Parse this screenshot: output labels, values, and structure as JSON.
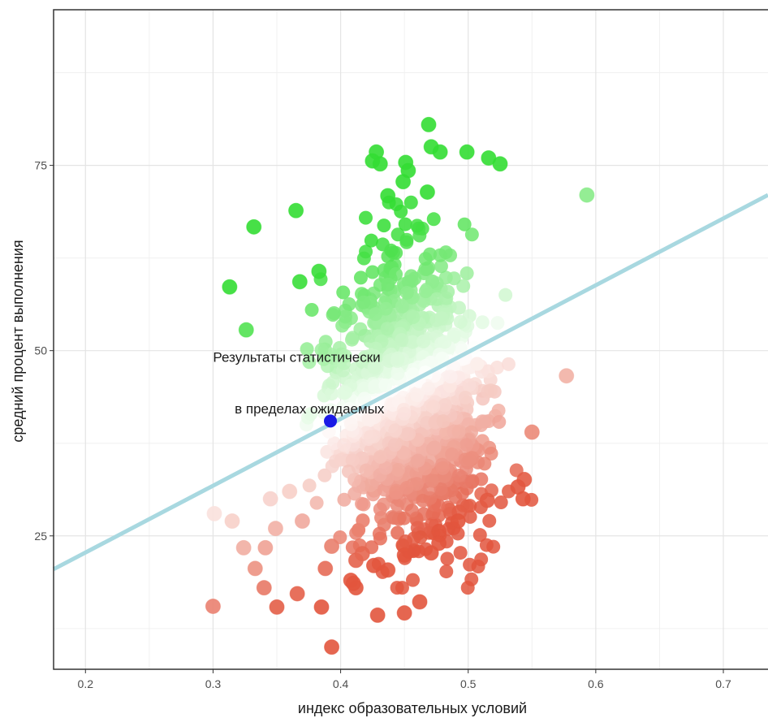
{
  "chart_data": {
    "type": "scatter",
    "title": "",
    "xlabel": "индекс образовательных условий",
    "ylabel": "средний процент выполнения",
    "xlim": [
      0.175,
      0.735
    ],
    "ylim": [
      7,
      96
    ],
    "x_ticks": [
      0.2,
      0.3,
      0.4,
      0.5,
      0.6,
      0.7
    ],
    "x_tick_labels": [
      "0.2",
      "0.3",
      "0.4",
      "0.5",
      "0.6",
      "0.7"
    ],
    "y_ticks": [
      25,
      50,
      75
    ],
    "y_tick_labels": [
      "25",
      "50",
      "75"
    ],
    "grid": true,
    "legend": "none",
    "colors": {
      "above_strong": "#33dd33",
      "below_strong": "#e2553d",
      "neutral": "#ffffff",
      "trend_line": "#a8d8e0",
      "highlight": "#1a1ae6"
    },
    "trend_line": {
      "x": [
        0.175,
        0.735
      ],
      "y": [
        20.5,
        71.0
      ]
    },
    "highlight_point": {
      "x": 0.392,
      "y": 40.5
    },
    "annotations": [
      {
        "text": "Результаты статистически",
        "x": 0.3,
        "y": 48.5
      },
      {
        "text": "в пределах ожидаемых",
        "x": 0.317,
        "y": 41.5
      }
    ],
    "notable_points": [
      [
        0.469,
        80.5
      ],
      [
        0.471,
        77.5
      ],
      [
        0.478,
        76.8
      ],
      [
        0.499,
        76.8
      ],
      [
        0.516,
        76.0
      ],
      [
        0.525,
        75.2
      ],
      [
        0.428,
        76.8
      ],
      [
        0.425,
        75.6
      ],
      [
        0.431,
        75.2
      ],
      [
        0.451,
        75.4
      ],
      [
        0.453,
        74.3
      ],
      [
        0.449,
        72.8
      ],
      [
        0.468,
        71.4
      ],
      [
        0.437,
        70.9
      ],
      [
        0.365,
        68.9
      ],
      [
        0.332,
        66.7
      ],
      [
        0.593,
        71.0
      ],
      [
        0.313,
        58.6
      ],
      [
        0.326,
        52.8
      ],
      [
        0.368,
        59.3
      ],
      [
        0.383,
        60.7
      ],
      [
        0.577,
        46.6
      ],
      [
        0.55,
        39.0
      ],
      [
        0.544,
        32.6
      ],
      [
        0.539,
        31.6
      ],
      [
        0.543,
        30.0
      ],
      [
        0.515,
        29.8
      ],
      [
        0.493,
        28.2
      ],
      [
        0.492,
        27.0
      ],
      [
        0.477,
        25.6
      ],
      [
        0.477,
        24.0
      ],
      [
        0.471,
        22.7
      ],
      [
        0.45,
        22.4
      ],
      [
        0.412,
        21.7
      ],
      [
        0.417,
        22.6
      ],
      [
        0.426,
        21.0
      ],
      [
        0.437,
        20.4
      ],
      [
        0.408,
        19.0
      ],
      [
        0.412,
        18.0
      ],
      [
        0.41,
        18.6
      ],
      [
        0.388,
        20.6
      ],
      [
        0.366,
        17.2
      ],
      [
        0.35,
        15.4
      ],
      [
        0.385,
        15.4
      ],
      [
        0.3,
        15.5
      ],
      [
        0.34,
        18.0
      ],
      [
        0.333,
        20.6
      ],
      [
        0.341,
        23.4
      ],
      [
        0.324,
        23.4
      ],
      [
        0.393,
        23.6
      ],
      [
        0.429,
        14.3
      ],
      [
        0.45,
        14.6
      ],
      [
        0.462,
        16.1
      ],
      [
        0.393,
        10.0
      ],
      [
        0.301,
        28.0
      ],
      [
        0.315,
        27.0
      ],
      [
        0.349,
        26.0
      ],
      [
        0.37,
        27.0
      ],
      [
        0.345,
        30.0
      ],
      [
        0.36,
        31.0
      ]
    ],
    "cloud": {
      "x_center": 0.455,
      "x_spread": 0.04,
      "y_center": 43,
      "y_spread": 11,
      "count": 1200
    }
  }
}
